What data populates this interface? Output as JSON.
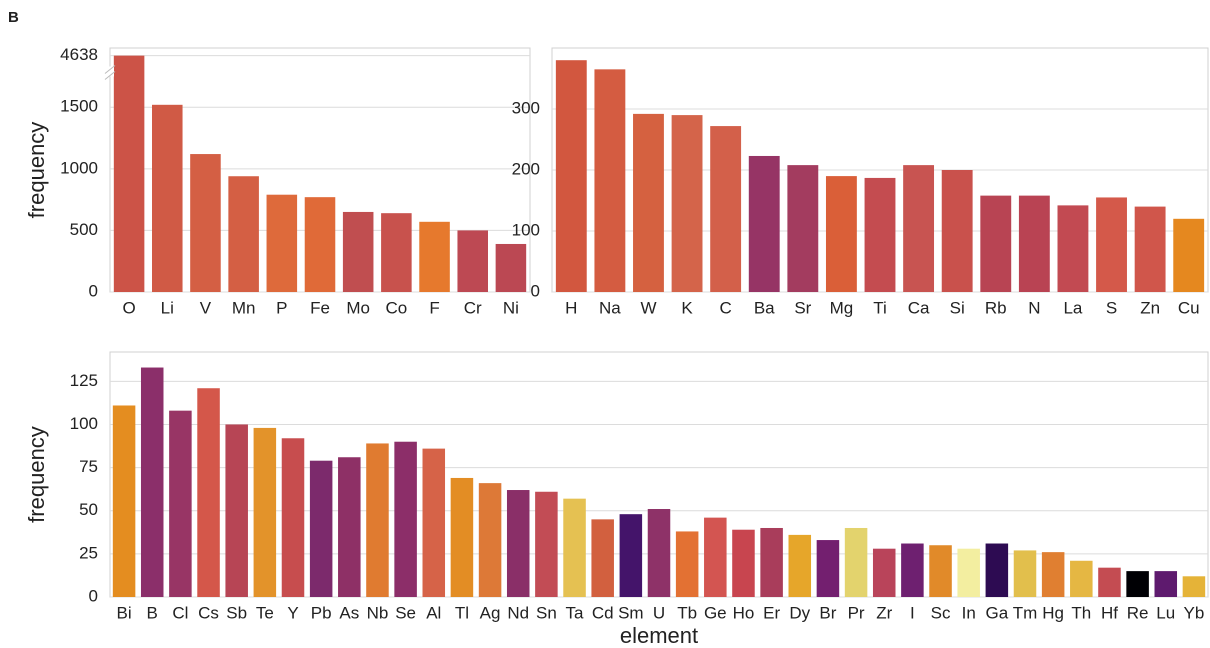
{
  "panel_label": "B",
  "chart_data": [
    {
      "type": "bar",
      "ylabel": "frequency",
      "categories": [
        "O",
        "Li",
        "V",
        "Mn",
        "P",
        "Fe",
        "Mo",
        "Co",
        "F",
        "Cr",
        "Ni"
      ],
      "values": [
        4638,
        1520,
        1120,
        940,
        790,
        770,
        650,
        640,
        570,
        500,
        390
      ],
      "colors": [
        "#cc5347",
        "#d05a45",
        "#d45f44",
        "#d45f44",
        "#de6a3b",
        "#e06a38",
        "#c04e50",
        "#c8524d",
        "#e6792d",
        "#bd4953",
        "#bb4853"
      ],
      "ylim": [
        0,
        4700
      ],
      "ybreak": [
        1750,
        4550
      ],
      "yticks": [
        0,
        500,
        1000,
        1500,
        4638
      ],
      "grid": true
    },
    {
      "type": "bar",
      "categories": [
        "H",
        "Na",
        "W",
        "K",
        "C",
        "Ba",
        "Sr",
        "Mg",
        "Ti",
        "Ca",
        "Si",
        "Rb",
        "N",
        "La",
        "S",
        "Zn",
        "Cu"
      ],
      "values": [
        380,
        365,
        292,
        290,
        272,
        223,
        208,
        190,
        187,
        208,
        200,
        158,
        158,
        142,
        155,
        140,
        120
      ],
      "colors": [
        "#d2573f",
        "#d45c41",
        "#d56140",
        "#d4644a",
        "#d3604a",
        "#963465",
        "#a33c5f",
        "#da5f38",
        "#c44c50",
        "#c85451",
        "#c9514c",
        "#b84453",
        "#b94353",
        "#c24a52",
        "#d4594a",
        "#d0564b",
        "#e5881f"
      ],
      "ylim": [
        0,
        400
      ],
      "yticks": [
        0,
        100,
        200,
        300
      ],
      "grid": true
    },
    {
      "type": "bar",
      "ylabel": "frequency",
      "xlabel": "element",
      "categories": [
        "Bi",
        "B",
        "Cl",
        "Cs",
        "Sb",
        "Te",
        "Y",
        "Pb",
        "As",
        "Nb",
        "Se",
        "Al",
        "Tl",
        "Ag",
        "Nd",
        "Sn",
        "Ta",
        "Cd",
        "Sm",
        "U",
        "Tb",
        "Ge",
        "Ho",
        "Er",
        "Dy",
        "Br",
        "Pr",
        "Zr",
        "I",
        "Sc",
        "In",
        "Ga",
        "Tm",
        "Hg",
        "Th",
        "Hf",
        "Re",
        "Lu",
        "Yb"
      ],
      "values": [
        111,
        133,
        108,
        121,
        100,
        98,
        92,
        79,
        81,
        89,
        90,
        86,
        69,
        66,
        62,
        61,
        57,
        45,
        48,
        51,
        38,
        46,
        39,
        40,
        36,
        33,
        40,
        28,
        31,
        30,
        28,
        31,
        27,
        26,
        21,
        17,
        15,
        15,
        12
      ],
      "colors": [
        "#e48d20",
        "#8b2f6a",
        "#983565",
        "#d4574a",
        "#b74555",
        "#e3932a",
        "#c74d4e",
        "#7c2a6c",
        "#8e3066",
        "#e07b30",
        "#8c2e69",
        "#d66348",
        "#e38d24",
        "#dd7937",
        "#8a2f68",
        "#c24c55",
        "#e5c152",
        "#d2603f",
        "#44146a",
        "#8e3268",
        "#e37133",
        "#d35551",
        "#c8454f",
        "#a93d5b",
        "#e6a62a",
        "#731f6f",
        "#e3d36d",
        "#b9445a",
        "#6e2070",
        "#e18a29",
        "#f3eea0",
        "#2d0b52",
        "#e2bf4c",
        "#e07f31",
        "#e5b743",
        "#c44c52",
        "#000004",
        "#5e1a6e",
        "#e5b338"
      ],
      "ylim": [
        0,
        142
      ],
      "yticks": [
        0,
        25,
        50,
        75,
        100,
        125
      ],
      "grid": true
    }
  ]
}
